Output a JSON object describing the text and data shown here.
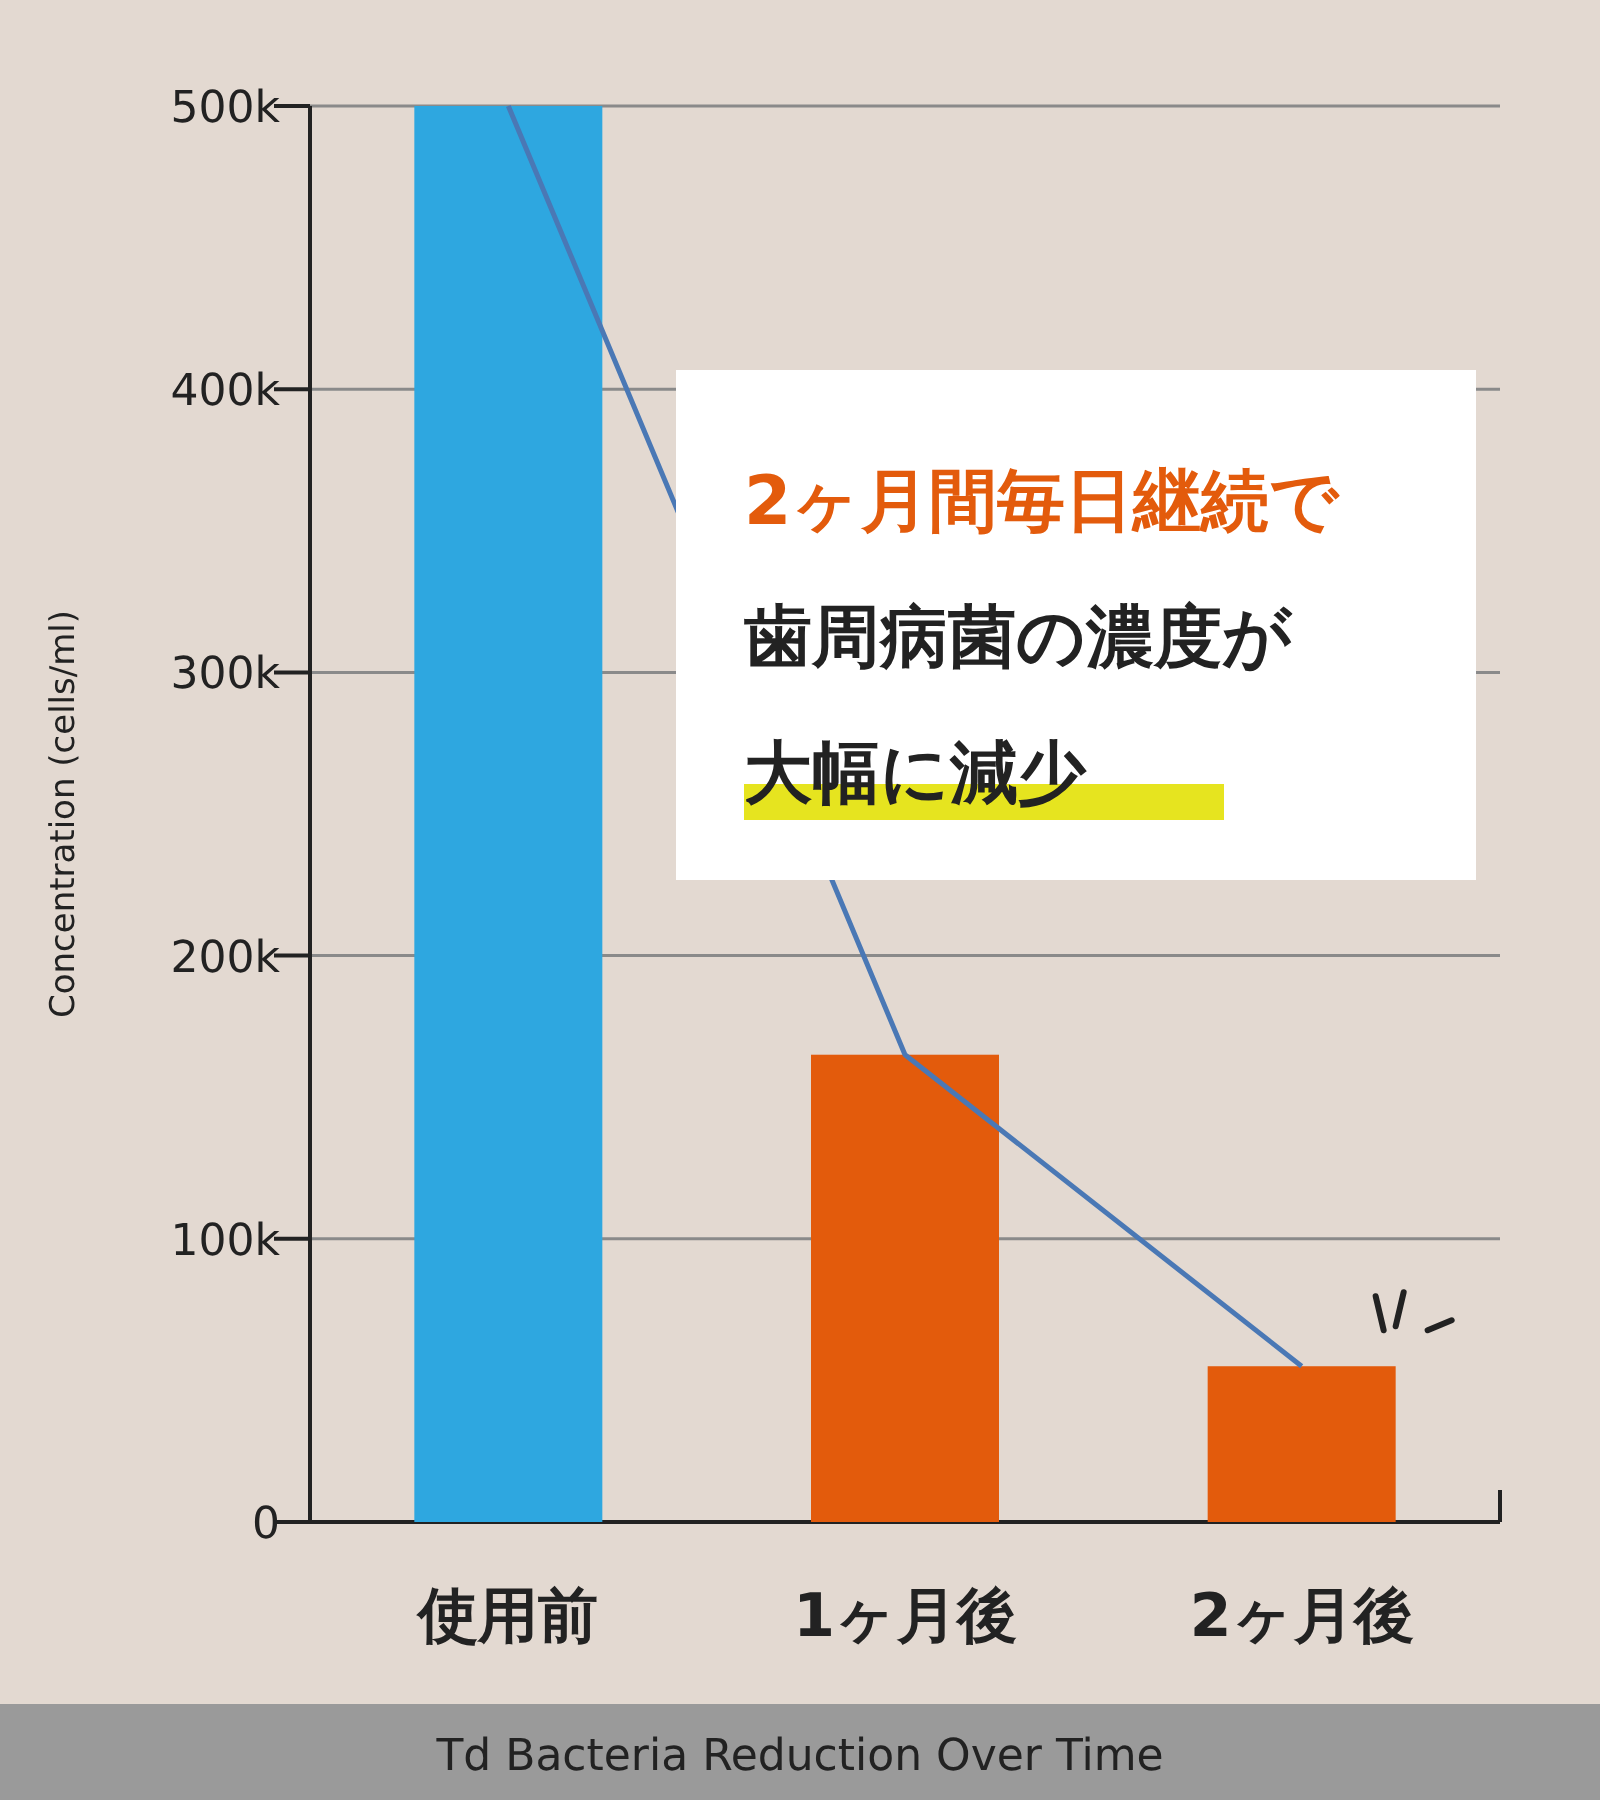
{
  "chart_data": {
    "type": "bar",
    "title": "Td Bacteria Reduction Over Time",
    "ylabel": "Concentration (cells/ml)",
    "categories": [
      "使用前",
      "1ヶ月後",
      "2ヶ月後"
    ],
    "series": [
      {
        "colors": [
          "#2ea7e0",
          "#e35b0c",
          "#e35b0c"
        ],
        "values": [
          500000,
          165000,
          55000
        ]
      },
      {
        "type": "line",
        "color": "#4a78b5",
        "values": [
          500000,
          165000,
          55000
        ]
      }
    ],
    "ylim": [
      0,
      500000
    ],
    "yticks": [
      {
        "value": 0,
        "label": "0"
      },
      {
        "value": 100000,
        "label": "100k"
      },
      {
        "value": 200000,
        "label": "200k"
      },
      {
        "value": 300000,
        "label": "300k"
      },
      {
        "value": 400000,
        "label": "400k"
      },
      {
        "value": 500000,
        "label": "500k"
      }
    ],
    "grid": "y",
    "annotations": [
      "2ヶ月間毎日継続で",
      "歯周病菌の濃度が",
      "大幅に減少"
    ]
  }
}
